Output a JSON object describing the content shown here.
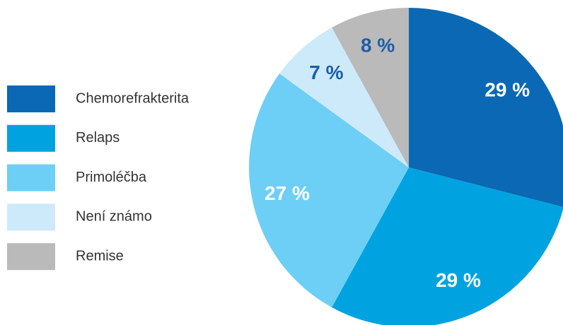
{
  "chart_data": {
    "type": "pie",
    "categories": [
      "Chemorefrakterita",
      "Relaps",
      "Primoléčba",
      "Není známo",
      "Remise"
    ],
    "values": [
      29,
      29,
      27,
      7,
      8
    ],
    "value_labels": [
      "29 %",
      "29 %",
      "27 %",
      "7 %",
      "8 %"
    ],
    "colors": [
      "#0a68b4",
      "#00a3e0",
      "#6dcff6",
      "#cdeafb",
      "#bababa"
    ],
    "label_colors": [
      "#ffffff",
      "#ffffff",
      "#ffffff",
      "#1b5fa9",
      "#1b5fa9"
    ],
    "legend": "left"
  }
}
